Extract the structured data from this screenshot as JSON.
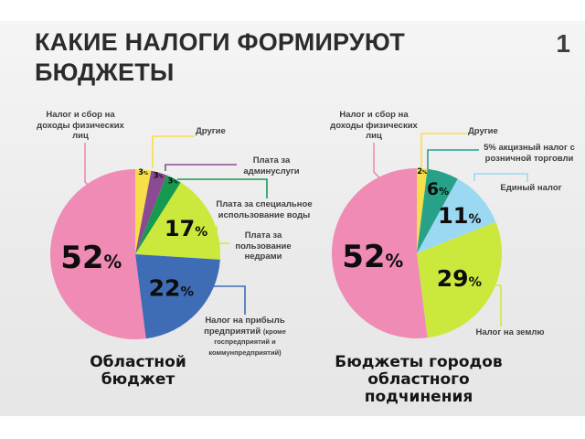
{
  "page": {
    "title_lines": [
      "КАКИЕ НАЛОГИ ФОРМИРУЮТ",
      "БЮДЖЕТЫ"
    ],
    "page_number": "1"
  },
  "colors": {
    "pink": "#ef8bb5",
    "blue": "#3e6db5",
    "lime": "#cbe93d",
    "yellow": "#f7df49",
    "purple": "#8c4a93",
    "green": "#169a50",
    "teal": "#27a289",
    "sky": "#9bd9f3",
    "slide_bg": "#ebebeb",
    "text_dark": "#2b2b2b"
  },
  "chart_data": [
    {
      "type": "pie",
      "title": "Областной бюджет",
      "title_lines": [
        "Областной",
        "бюджет"
      ],
      "slices": [
        {
          "label": "Другие",
          "value": 3,
          "color": "#f7df49"
        },
        {
          "label": "Плата за админуслуги",
          "value": 3,
          "color": "#8c4a93"
        },
        {
          "label": "Плата за специальное использование воды",
          "value": 3,
          "color": "#169a50"
        },
        {
          "label": "Плата за пользование недрами",
          "value": 17,
          "color": "#cbe93d"
        },
        {
          "label": "Налог на прибыль предприятий",
          "note": "(кроме госпредприятий и коммунпредприятий)",
          "value": 22,
          "color": "#3e6db5"
        },
        {
          "label": "Налог и сбор на доходы физических лиц",
          "value": 52,
          "color": "#ef8bb5"
        }
      ]
    },
    {
      "type": "pie",
      "title": "Бюджеты городов областного подчинения",
      "title_lines": [
        "Бюджеты городов",
        "областного",
        "подчинения"
      ],
      "slices": [
        {
          "label": "Другие",
          "value": 2,
          "color": "#f7df49"
        },
        {
          "label": "5% акцизный налог с розничной торговли",
          "value": 6,
          "color": "#27a289"
        },
        {
          "label": "Единый налог",
          "value": 11,
          "color": "#9bd9f3"
        },
        {
          "label": "Налог на землю",
          "value": 29,
          "color": "#cbe93d"
        },
        {
          "label": "Налог и сбор на доходы физических лиц",
          "value": 52,
          "color": "#ef8bb5"
        }
      ]
    }
  ]
}
